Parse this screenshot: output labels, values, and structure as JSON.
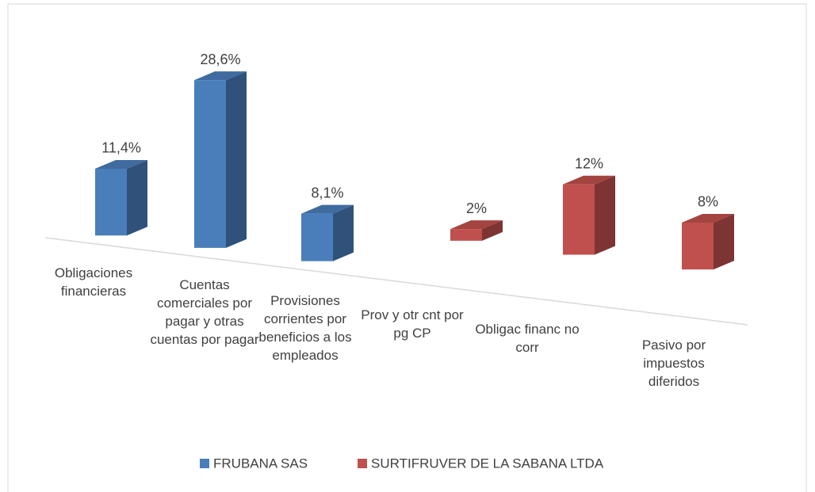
{
  "chart_data": {
    "type": "bar3d",
    "categories": [
      "Obligaciones financieras",
      "Cuentas comerciales por pagar y otras cuentas por pagar",
      "Provisiones corrientes por beneficios a los empleados",
      "Prov y otr cnt por pg CP",
      "Obligac financ no corr",
      "Pasivo por impuestos diferidos"
    ],
    "series": [
      {
        "name": "FRUBANA SAS",
        "color": "#4a7ebb",
        "values": [
          11.4,
          28.6,
          8.1,
          null,
          null,
          null
        ],
        "value_labels": [
          "11,4%",
          "28,6%",
          "8,1%",
          null,
          null,
          null
        ]
      },
      {
        "name": "SURTIFRUVER DE LA SABANA LTDA",
        "color": "#c0504d",
        "values": [
          null,
          null,
          null,
          2,
          12,
          8
        ],
        "value_labels": [
          null,
          null,
          null,
          "2%",
          "12%",
          "8%"
        ]
      }
    ],
    "legend": "bottom"
  }
}
